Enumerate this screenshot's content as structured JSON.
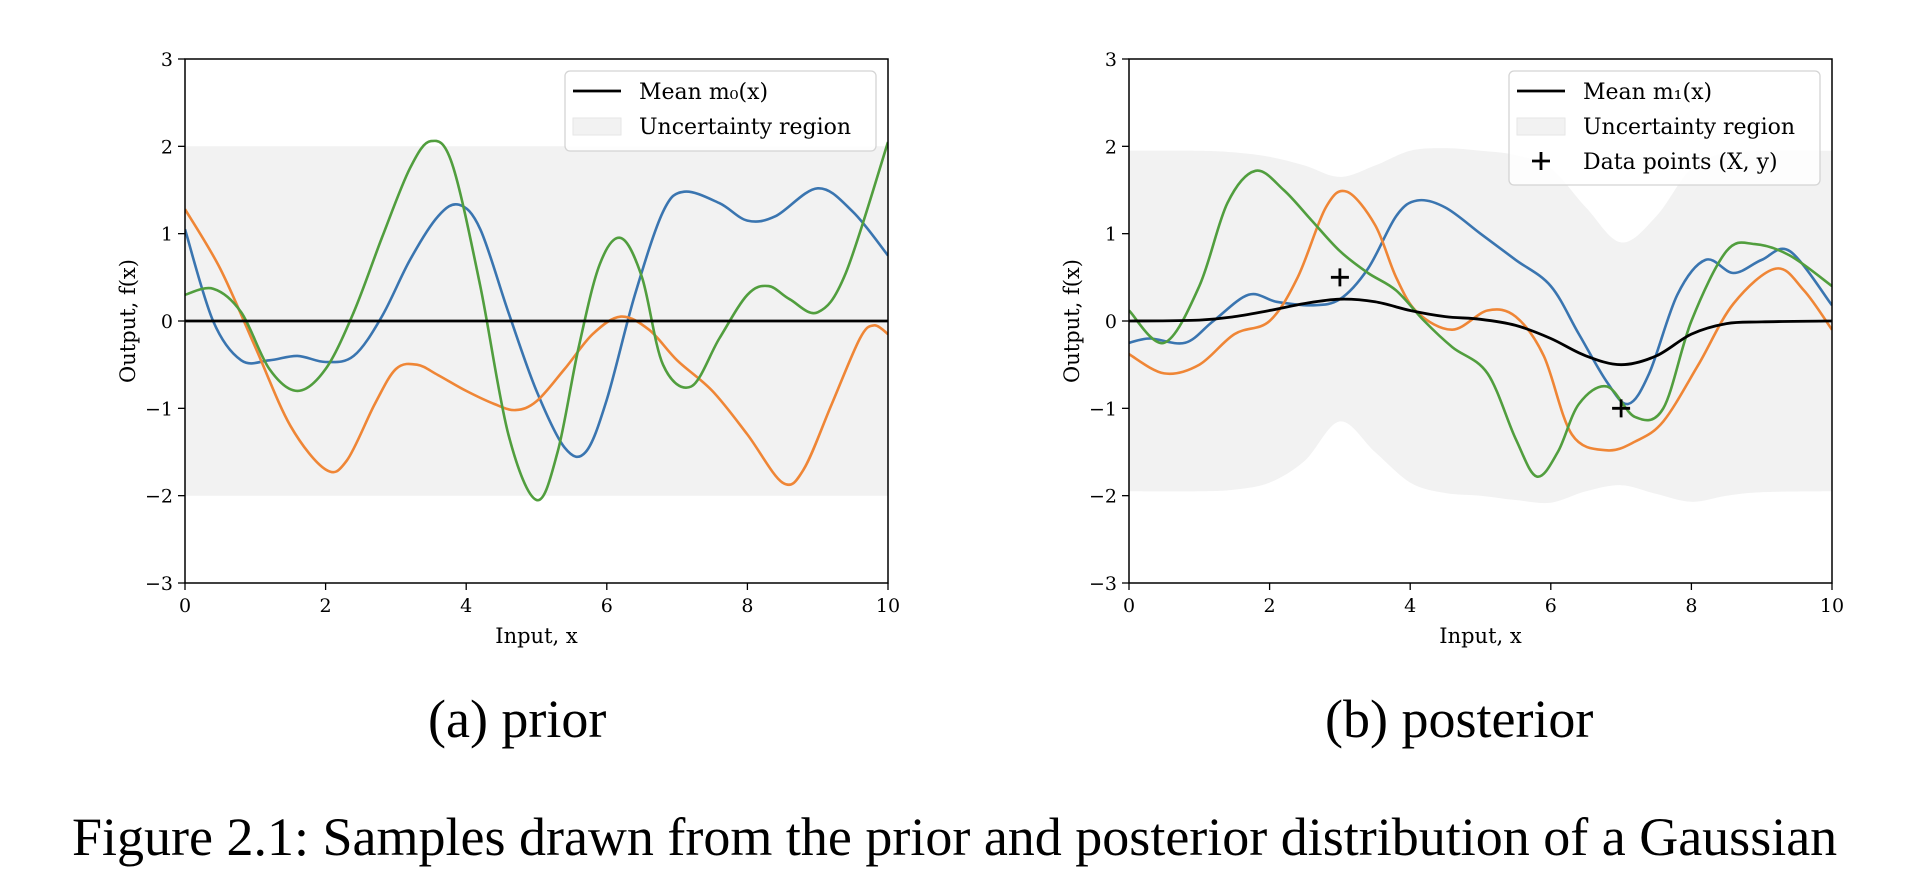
{
  "caption": "Figure 2.1: Samples drawn from the prior and posterior distribution of a Gaussian",
  "colors": {
    "mean": "#000000",
    "band": "#f2f2f2",
    "sample_1": "#3a75b0",
    "sample_2": "#ef8636",
    "sample_3": "#519e3e"
  },
  "chart_data": [
    {
      "type": "line",
      "subcaption": "(a) prior",
      "xlabel": "Input, x",
      "ylabel": "Output, f(x)",
      "xlim": [
        0,
        10
      ],
      "ylim": [
        -3,
        3
      ],
      "xticks": [
        0,
        2,
        4,
        6,
        8,
        10
      ],
      "yticks": [
        -3,
        -2,
        -1,
        0,
        1,
        2,
        3
      ],
      "ytick_labels": [
        "−3",
        "−2",
        "−1",
        "0",
        "1",
        "2",
        "3"
      ],
      "grid": false,
      "legend_position": "top-right",
      "legend": [
        {
          "kind": "line",
          "label": "Mean m₀(x)"
        },
        {
          "kind": "band",
          "label": "Uncertainty region"
        }
      ],
      "mean": {
        "x": [
          0,
          10
        ],
        "y": [
          0,
          0
        ]
      },
      "band": {
        "x": [
          0,
          10
        ],
        "upper": [
          2,
          2
        ],
        "lower": [
          -2,
          -2
        ]
      },
      "series": [
        {
          "color_key": "sample_1",
          "x": [
            0,
            0.4,
            0.8,
            1.2,
            1.6,
            2.0,
            2.4,
            2.8,
            3.2,
            3.6,
            3.9,
            4.2,
            4.6,
            5.0,
            5.4,
            5.7,
            6.0,
            6.4,
            6.8,
            7.1,
            7.6,
            8.0,
            8.4,
            9.0,
            9.5,
            10
          ],
          "y": [
            1.05,
            0.0,
            -0.45,
            -0.45,
            -0.4,
            -0.47,
            -0.4,
            0.05,
            0.7,
            1.2,
            1.33,
            1.05,
            0.1,
            -0.8,
            -1.45,
            -1.5,
            -0.9,
            0.3,
            1.25,
            1.48,
            1.35,
            1.15,
            1.2,
            1.52,
            1.25,
            0.75
          ]
        },
        {
          "color_key": "sample_2",
          "x": [
            0,
            0.5,
            1.0,
            1.5,
            2.0,
            2.3,
            2.7,
            3.0,
            3.3,
            3.6,
            4.0,
            4.4,
            4.7,
            5.0,
            5.4,
            5.8,
            6.2,
            6.6,
            7.0,
            7.5,
            8.0,
            8.5,
            8.8,
            9.2,
            9.6,
            9.8,
            10
          ],
          "y": [
            1.28,
            0.6,
            -0.3,
            -1.2,
            -1.7,
            -1.6,
            -0.95,
            -0.55,
            -0.5,
            -0.62,
            -0.8,
            -0.95,
            -1.02,
            -0.92,
            -0.55,
            -0.15,
            0.05,
            -0.1,
            -0.45,
            -0.8,
            -1.3,
            -1.85,
            -1.7,
            -0.95,
            -0.2,
            -0.05,
            -0.15
          ]
        },
        {
          "color_key": "sample_3",
          "x": [
            0,
            0.4,
            0.8,
            1.2,
            1.6,
            2.0,
            2.4,
            2.8,
            3.2,
            3.5,
            3.8,
            4.2,
            4.6,
            5.0,
            5.3,
            5.6,
            5.9,
            6.2,
            6.5,
            6.8,
            7.2,
            7.6,
            8.0,
            8.3,
            8.6,
            9.0,
            9.4,
            10
          ],
          "y": [
            0.3,
            0.37,
            0.1,
            -0.55,
            -0.8,
            -0.55,
            0.1,
            0.95,
            1.75,
            2.06,
            1.8,
            0.4,
            -1.3,
            -2.05,
            -1.5,
            -0.3,
            0.65,
            0.95,
            0.5,
            -0.5,
            -0.75,
            -0.2,
            0.3,
            0.4,
            0.25,
            0.1,
            0.55,
            2.05
          ]
        }
      ]
    },
    {
      "type": "line",
      "subcaption": "(b) posterior",
      "xlabel": "Input, x",
      "ylabel": "Output, f(x)",
      "xlim": [
        0,
        10
      ],
      "ylim": [
        -3,
        3
      ],
      "xticks": [
        0,
        2,
        4,
        6,
        8,
        10
      ],
      "yticks": [
        -3,
        -2,
        -1,
        0,
        1,
        2,
        3
      ],
      "ytick_labels": [
        "−3",
        "−2",
        "−1",
        "0",
        "1",
        "2",
        "3"
      ],
      "grid": false,
      "legend_position": "top-right",
      "legend": [
        {
          "kind": "line",
          "label": "Mean m₁(x)"
        },
        {
          "kind": "band",
          "label": "Uncertainty region"
        },
        {
          "kind": "marker",
          "label": "Data points (X, y)"
        }
      ],
      "data_points": {
        "x": [
          3,
          7
        ],
        "y": [
          0.5,
          -1.0
        ]
      },
      "mean": {
        "x": [
          0,
          1,
          1.5,
          2.0,
          2.5,
          3.0,
          3.5,
          4.0,
          4.5,
          5.0,
          5.5,
          6.0,
          6.5,
          7.0,
          7.5,
          8.0,
          8.5,
          9.0,
          10
        ],
        "y": [
          0,
          0.01,
          0.05,
          0.12,
          0.2,
          0.25,
          0.22,
          0.12,
          0.05,
          0.02,
          -0.05,
          -0.2,
          -0.4,
          -0.5,
          -0.4,
          -0.15,
          -0.03,
          -0.01,
          0
        ]
      },
      "band": {
        "x": [
          0,
          1.0,
          1.5,
          2.0,
          2.5,
          3.0,
          3.5,
          4.0,
          4.5,
          5.0,
          5.5,
          6.0,
          6.5,
          7.0,
          7.5,
          8.0,
          8.5,
          9.0,
          10
        ],
        "upper": [
          1.95,
          1.95,
          1.93,
          1.88,
          1.78,
          1.65,
          1.78,
          1.95,
          1.98,
          1.95,
          1.9,
          1.75,
          1.3,
          0.9,
          1.2,
          1.75,
          1.93,
          1.95,
          1.95
        ],
        "lower": [
          -1.95,
          -1.95,
          -1.93,
          -1.85,
          -1.6,
          -1.15,
          -1.5,
          -1.85,
          -1.97,
          -2.0,
          -2.05,
          -2.08,
          -1.95,
          -1.88,
          -1.98,
          -2.07,
          -2.0,
          -1.96,
          -1.95
        ]
      },
      "series": [
        {
          "color_key": "sample_1",
          "x": [
            0,
            0.3,
            0.8,
            1.2,
            1.7,
            2.1,
            2.6,
            3.0,
            3.4,
            3.8,
            4.1,
            4.5,
            5.0,
            5.5,
            6.0,
            6.4,
            6.8,
            7.1,
            7.4,
            7.8,
            8.2,
            8.6,
            9.0,
            9.4,
            10
          ],
          "y": [
            -0.25,
            -0.2,
            -0.25,
            0.0,
            0.3,
            0.22,
            0.18,
            0.25,
            0.6,
            1.2,
            1.38,
            1.3,
            1.0,
            0.7,
            0.4,
            -0.15,
            -0.7,
            -0.95,
            -0.6,
            0.3,
            0.7,
            0.55,
            0.7,
            0.8,
            0.18
          ]
        },
        {
          "color_key": "sample_2",
          "x": [
            0,
            0.5,
            1.0,
            1.5,
            2.0,
            2.4,
            2.8,
            3.1,
            3.5,
            3.8,
            4.1,
            4.6,
            5.1,
            5.5,
            5.9,
            6.3,
            6.8,
            7.2,
            7.6,
            8.1,
            8.6,
            9.2,
            9.6,
            10
          ],
          "y": [
            -0.38,
            -0.6,
            -0.5,
            -0.15,
            0.0,
            0.5,
            1.3,
            1.48,
            1.1,
            0.5,
            0.1,
            -0.1,
            0.12,
            0.05,
            -0.4,
            -1.3,
            -1.48,
            -1.38,
            -1.15,
            -0.5,
            0.2,
            0.6,
            0.35,
            -0.1
          ]
        },
        {
          "color_key": "sample_3",
          "x": [
            0,
            0.5,
            1.0,
            1.4,
            1.8,
            2.2,
            2.6,
            3.0,
            3.4,
            3.8,
            4.2,
            4.6,
            5.1,
            5.5,
            5.8,
            6.1,
            6.4,
            6.8,
            7.2,
            7.6,
            8.0,
            8.5,
            8.9,
            9.4,
            10
          ],
          "y": [
            0.12,
            -0.25,
            0.4,
            1.35,
            1.72,
            1.5,
            1.15,
            0.8,
            0.55,
            0.35,
            0.0,
            -0.3,
            -0.6,
            -1.35,
            -1.78,
            -1.5,
            -0.95,
            -0.75,
            -1.1,
            -1.0,
            0.0,
            0.8,
            0.88,
            0.75,
            0.4
          ]
        }
      ]
    }
  ]
}
